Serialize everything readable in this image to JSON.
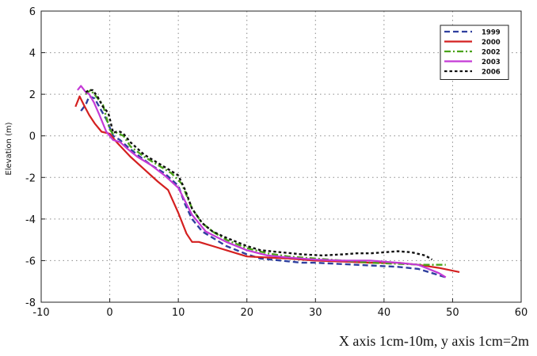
{
  "chart_data": {
    "type": "line",
    "title": "",
    "xlabel": "",
    "ylabel": "Elevation (m)",
    "xlim": [
      -10,
      60
    ],
    "ylim": [
      -8,
      6
    ],
    "x_ticks": [
      -10,
      0,
      10,
      20,
      30,
      40,
      50,
      60
    ],
    "y_ticks": [
      -8,
      -6,
      -4,
      -2,
      0,
      2,
      4,
      6
    ],
    "grid": true,
    "legend_position": "top-right",
    "series": [
      {
        "name": "1999",
        "color": "#2f3f9e",
        "dash": "dashed",
        "x": [
          -4.2,
          -3.5,
          -3,
          -2.2,
          -1.2,
          -0.5,
          0.5,
          1.5,
          2.5,
          4,
          6,
          8,
          10,
          11,
          12,
          13.5,
          15,
          17,
          20,
          22,
          25,
          28,
          30,
          33,
          36,
          39,
          42,
          45,
          47,
          49
        ],
        "y": [
          1.2,
          1.5,
          1.9,
          1.8,
          1.2,
          0.8,
          0.0,
          -0.2,
          -0.5,
          -0.9,
          -1.4,
          -1.8,
          -2.4,
          -3.3,
          -4.0,
          -4.6,
          -4.9,
          -5.3,
          -5.7,
          -5.9,
          -6.0,
          -6.1,
          -6.1,
          -6.15,
          -6.2,
          -6.25,
          -6.3,
          -6.4,
          -6.6,
          -6.8
        ]
      },
      {
        "name": "2000",
        "color": "#d42020",
        "dash": "solid",
        "x": [
          -5,
          -4.4,
          -3.8,
          -3,
          -2.2,
          -1.2,
          0,
          1,
          3,
          5,
          7,
          8.5,
          10,
          11.2,
          12,
          13,
          15,
          18,
          20,
          23,
          26,
          30,
          34,
          38,
          42,
          45,
          48,
          51
        ],
        "y": [
          1.4,
          1.9,
          1.5,
          1.0,
          0.6,
          0.2,
          0.1,
          -0.3,
          -1.0,
          -1.6,
          -2.2,
          -2.6,
          -3.7,
          -4.7,
          -5.1,
          -5.1,
          -5.3,
          -5.6,
          -5.8,
          -5.85,
          -5.9,
          -6.0,
          -6.05,
          -6.1,
          -6.1,
          -6.2,
          -6.35,
          -6.55
        ]
      },
      {
        "name": "2002",
        "color": "#4aa31a",
        "dash": "dashdot",
        "x": [
          -3.5,
          -2.8,
          -2,
          -1,
          0,
          0.5,
          1,
          2,
          3,
          5,
          7,
          9,
          10.5,
          12,
          13.5,
          15,
          17,
          20,
          23,
          26,
          30,
          34,
          38,
          42,
          46,
          49
        ],
        "y": [
          2.0,
          2.2,
          1.9,
          1.5,
          0.3,
          0.1,
          0.15,
          0.0,
          -0.5,
          -1.0,
          -1.4,
          -1.8,
          -2.3,
          -3.5,
          -4.2,
          -4.6,
          -5.0,
          -5.4,
          -5.65,
          -5.8,
          -5.9,
          -6.0,
          -6.1,
          -6.15,
          -6.2,
          -6.2
        ]
      },
      {
        "name": "2003",
        "color": "#c43ad6",
        "dash": "solid",
        "x": [
          -4.7,
          -4.2,
          -3.5,
          -3,
          -2.3,
          -1.5,
          -0.5,
          0.5,
          1.5,
          2.5,
          4,
          6,
          8,
          10,
          12,
          14,
          17,
          20,
          23,
          26,
          30,
          34,
          38,
          42,
          45,
          48,
          49
        ],
        "y": [
          2.2,
          2.4,
          2.1,
          2.0,
          1.6,
          1.0,
          0.2,
          -0.2,
          -0.3,
          -0.6,
          -1.0,
          -1.4,
          -1.9,
          -2.5,
          -3.8,
          -4.6,
          -5.1,
          -5.5,
          -5.75,
          -5.85,
          -5.95,
          -6.0,
          -6.0,
          -6.1,
          -6.2,
          -6.6,
          -6.8
        ]
      },
      {
        "name": "2006",
        "color": "#111111",
        "dash": "dotted",
        "x": [
          -3.5,
          -3,
          -2.5,
          -1.8,
          -1,
          -0.2,
          0.5,
          1,
          1.5,
          2,
          3,
          5,
          7,
          9,
          10,
          11,
          12,
          13.5,
          15,
          17,
          20,
          22,
          25,
          28,
          31,
          34,
          36,
          38,
          40,
          42,
          44,
          46,
          47
        ],
        "y": [
          2.1,
          2.2,
          2.2,
          1.9,
          1.4,
          1.1,
          0.15,
          0.2,
          0.2,
          0.1,
          -0.3,
          -0.9,
          -1.3,
          -1.7,
          -1.9,
          -2.6,
          -3.5,
          -4.2,
          -4.6,
          -4.9,
          -5.3,
          -5.5,
          -5.6,
          -5.7,
          -5.75,
          -5.7,
          -5.65,
          -5.65,
          -5.6,
          -5.55,
          -5.6,
          -5.75,
          -5.95
        ]
      }
    ]
  },
  "caption": "X axis 1cm-10m, y axis 1cm=2m"
}
